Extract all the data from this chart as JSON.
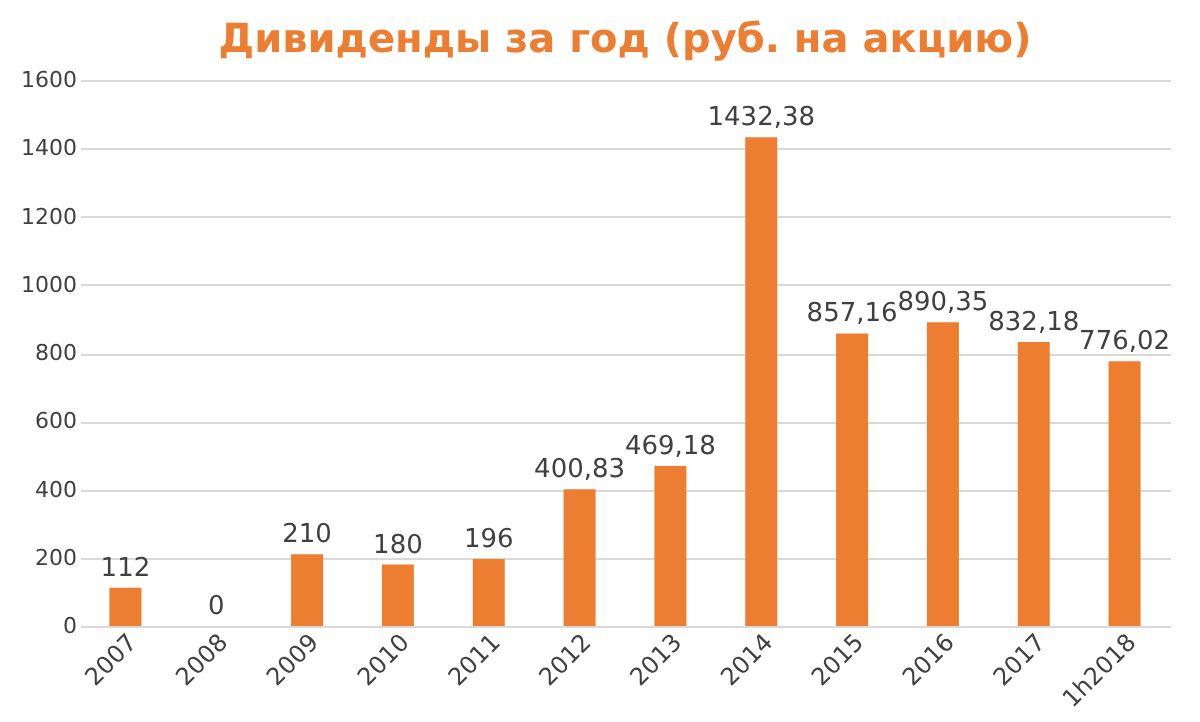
{
  "chart_data": {
    "type": "bar",
    "title": "Дивиденды за год (руб. на акцию)",
    "categories": [
      "2007",
      "2008",
      "2009",
      "2010",
      "2011",
      "2012",
      "2013",
      "2014",
      "2015",
      "2016",
      "2017",
      "1h2018"
    ],
    "values": [
      112,
      0,
      210,
      180,
      196,
      400.83,
      469.18,
      1432.38,
      857.16,
      890.35,
      832.18,
      776.02
    ],
    "value_labels": [
      "112",
      "0",
      "210",
      "180",
      "196",
      "400,83",
      "469,18",
      "1432,38",
      "857,16",
      "890,35",
      "832,18",
      "776,02"
    ],
    "color": "#ed7d31",
    "ylim": [
      0,
      1600
    ],
    "yticks": [
      0,
      200,
      400,
      600,
      800,
      1000,
      1200,
      1400,
      1600
    ],
    "grid": "y"
  }
}
